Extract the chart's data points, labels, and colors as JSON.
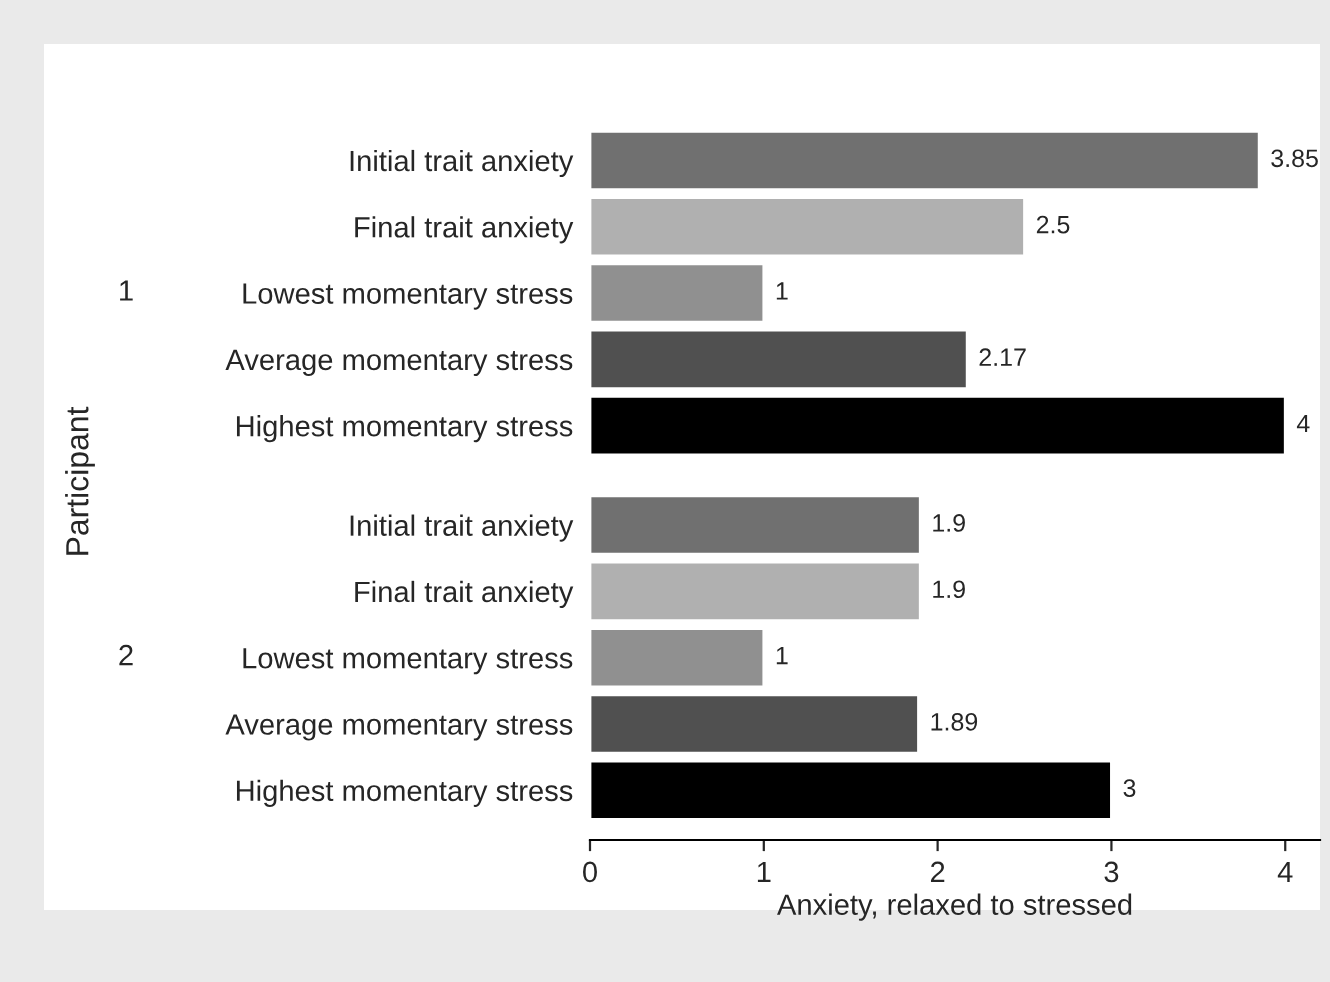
{
  "chart_data": {
    "type": "bar",
    "orientation": "horizontal",
    "xlabel": "Anxiety, relaxed to stressed",
    "ylabel": "Participant",
    "categories": [
      "Initial trait anxiety",
      "Final trait anxiety",
      "Lowest momentary stress",
      "Average momentary stress",
      "Highest momentary stress",
      "Initial trait anxiety",
      "Final trait anxiety",
      "Lowest momentary stress",
      "Average momentary stress",
      "Highest momentary stress"
    ],
    "values": [
      3.85,
      2.5,
      1,
      2.17,
      4,
      1.9,
      1.9,
      1,
      1.89,
      3
    ],
    "colors": [
      "#707070",
      "#b0b0b0",
      "#909090",
      "#505050",
      "#000000",
      "#707070",
      "#b0b0b0",
      "#909090",
      "#505050",
      "#000000"
    ],
    "annotations": [
      "1",
      "2"
    ],
    "xlim": [
      0,
      4.2
    ],
    "xticks": [
      0,
      1,
      2,
      3,
      4
    ],
    "data_labels": true,
    "grid": false,
    "legend": false
  }
}
